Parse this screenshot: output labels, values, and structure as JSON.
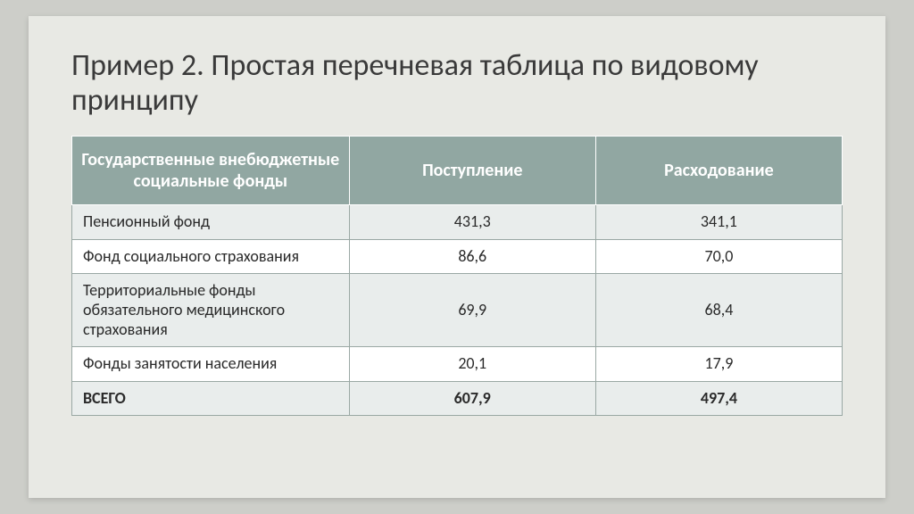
{
  "title": "Пример 2. Простая перечневая таблица по видовому принципу",
  "table": {
    "columns": [
      "Государственные внебюджетные социальные фонды",
      "Поступление",
      "Расходование"
    ],
    "rows": [
      {
        "label": "Пенсионный фонд",
        "c1": "431,3",
        "c2": "341,1",
        "band": "light"
      },
      {
        "label": "Фонд социального страхования",
        "c1": "86,6",
        "c2": "70,0",
        "band": "white"
      },
      {
        "label": "Территориальные фонды обязательного медицинского страхования",
        "c1": "69,9",
        "c2": "68,4",
        "band": "light"
      },
      {
        "label": "Фонды занятости населения",
        "c1": "20,1",
        "c2": "17,9",
        "band": "white"
      }
    ],
    "total": {
      "label": "ВСЕГО",
      "c1": "607,9",
      "c2": "497,4"
    }
  },
  "colors": {
    "page_bg": "#cdcec9",
    "slide_bg": "#e8e9e4",
    "header_bg": "#91a7a2",
    "header_text": "#ffffff",
    "cell_border": "#9aa8a4",
    "band_light": "#e9edec",
    "band_white": "#ffffff",
    "title_color": "#3a3a3a"
  },
  "fonts": {
    "title_size_pt": 26,
    "header_size_pt": 15,
    "cell_size_pt": 13
  }
}
